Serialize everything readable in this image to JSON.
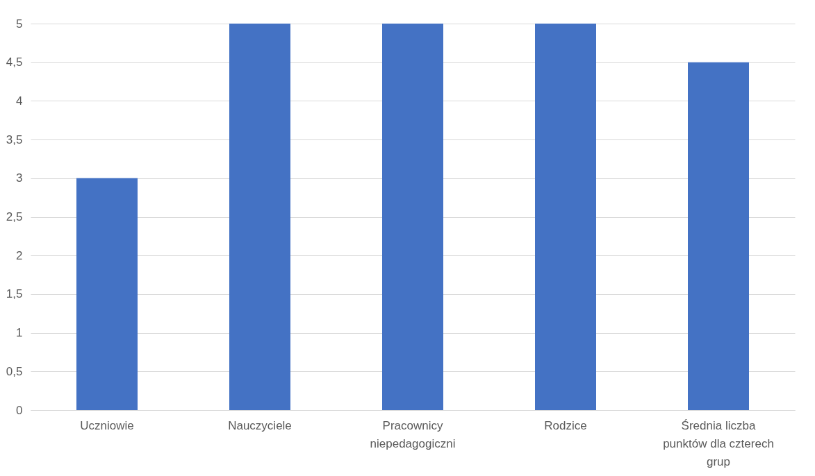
{
  "chart_data": {
    "type": "bar",
    "categories": [
      "Uczniowie",
      "Nauczyciele",
      "Pracownicy niepedagogiczni",
      "Rodzice",
      "Średnia liczba punktów dla czterech grup"
    ],
    "values": [
      3,
      5,
      5,
      5,
      4.5
    ],
    "color": "#4472c4",
    "ylim": [
      0,
      5
    ],
    "yticks": [
      0,
      {
        "value": 0.5,
        "label": "0,5"
      },
      1,
      {
        "value": 1.5,
        "label": "1,5"
      },
      2,
      {
        "value": 2.5,
        "label": "2,5"
      },
      3,
      {
        "value": 3.5,
        "label": "3,5"
      },
      4,
      {
        "value": 4.5,
        "label": "4,5"
      },
      5
    ],
    "grid": "y"
  }
}
